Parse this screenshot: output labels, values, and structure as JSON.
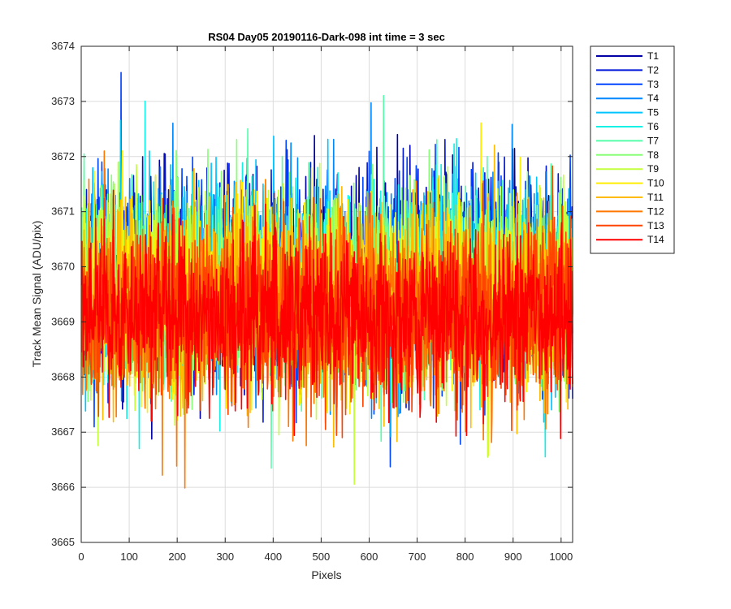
{
  "chart_data": {
    "type": "line",
    "title": "RS04 Day05 20190116-Dark-098 int time = 3 sec",
    "xlabel": "Pixels",
    "ylabel": "Track Mean Signal (ADU/pix)",
    "xlim": [
      0,
      1024
    ],
    "ylim": [
      3665,
      3674
    ],
    "xticks": [
      0,
      100,
      200,
      300,
      400,
      500,
      600,
      700,
      800,
      900,
      1000
    ],
    "yticks": [
      3665,
      3666,
      3667,
      3668,
      3669,
      3670,
      3671,
      3672,
      3673,
      3674
    ],
    "grid": true,
    "legend_position": "outside-top-right",
    "num_points": 1024,
    "series": [
      {
        "name": "T1",
        "color": "#0000a6",
        "mean": 3669.85,
        "std": 0.85
      },
      {
        "name": "T2",
        "color": "#0016d9",
        "mean": 3669.8,
        "std": 0.85
      },
      {
        "name": "T3",
        "color": "#0044ff",
        "mean": 3669.75,
        "std": 0.85
      },
      {
        "name": "T4",
        "color": "#0088ff",
        "mean": 3669.75,
        "std": 0.85
      },
      {
        "name": "T5",
        "color": "#00c4ff",
        "mean": 3669.75,
        "std": 0.85
      },
      {
        "name": "T6",
        "color": "#11f1e6",
        "mean": 3669.7,
        "std": 0.85
      },
      {
        "name": "T7",
        "color": "#55ffaa",
        "mean": 3669.65,
        "std": 0.85
      },
      {
        "name": "T8",
        "color": "#88ff77",
        "mean": 3669.6,
        "std": 0.85
      },
      {
        "name": "T9",
        "color": "#c4ff3b",
        "mean": 3669.55,
        "std": 0.85
      },
      {
        "name": "T10",
        "color": "#ffee00",
        "mean": 3669.45,
        "std": 0.85
      },
      {
        "name": "T11",
        "color": "#ffbb00",
        "mean": 3669.35,
        "std": 0.85
      },
      {
        "name": "T12",
        "color": "#ff7700",
        "mean": 3669.25,
        "std": 0.85
      },
      {
        "name": "T13",
        "color": "#ff4400",
        "mean": 3669.15,
        "std": 0.8
      },
      {
        "name": "T14",
        "color": "#ff0000",
        "mean": 3669.1,
        "std": 0.75
      }
    ]
  }
}
